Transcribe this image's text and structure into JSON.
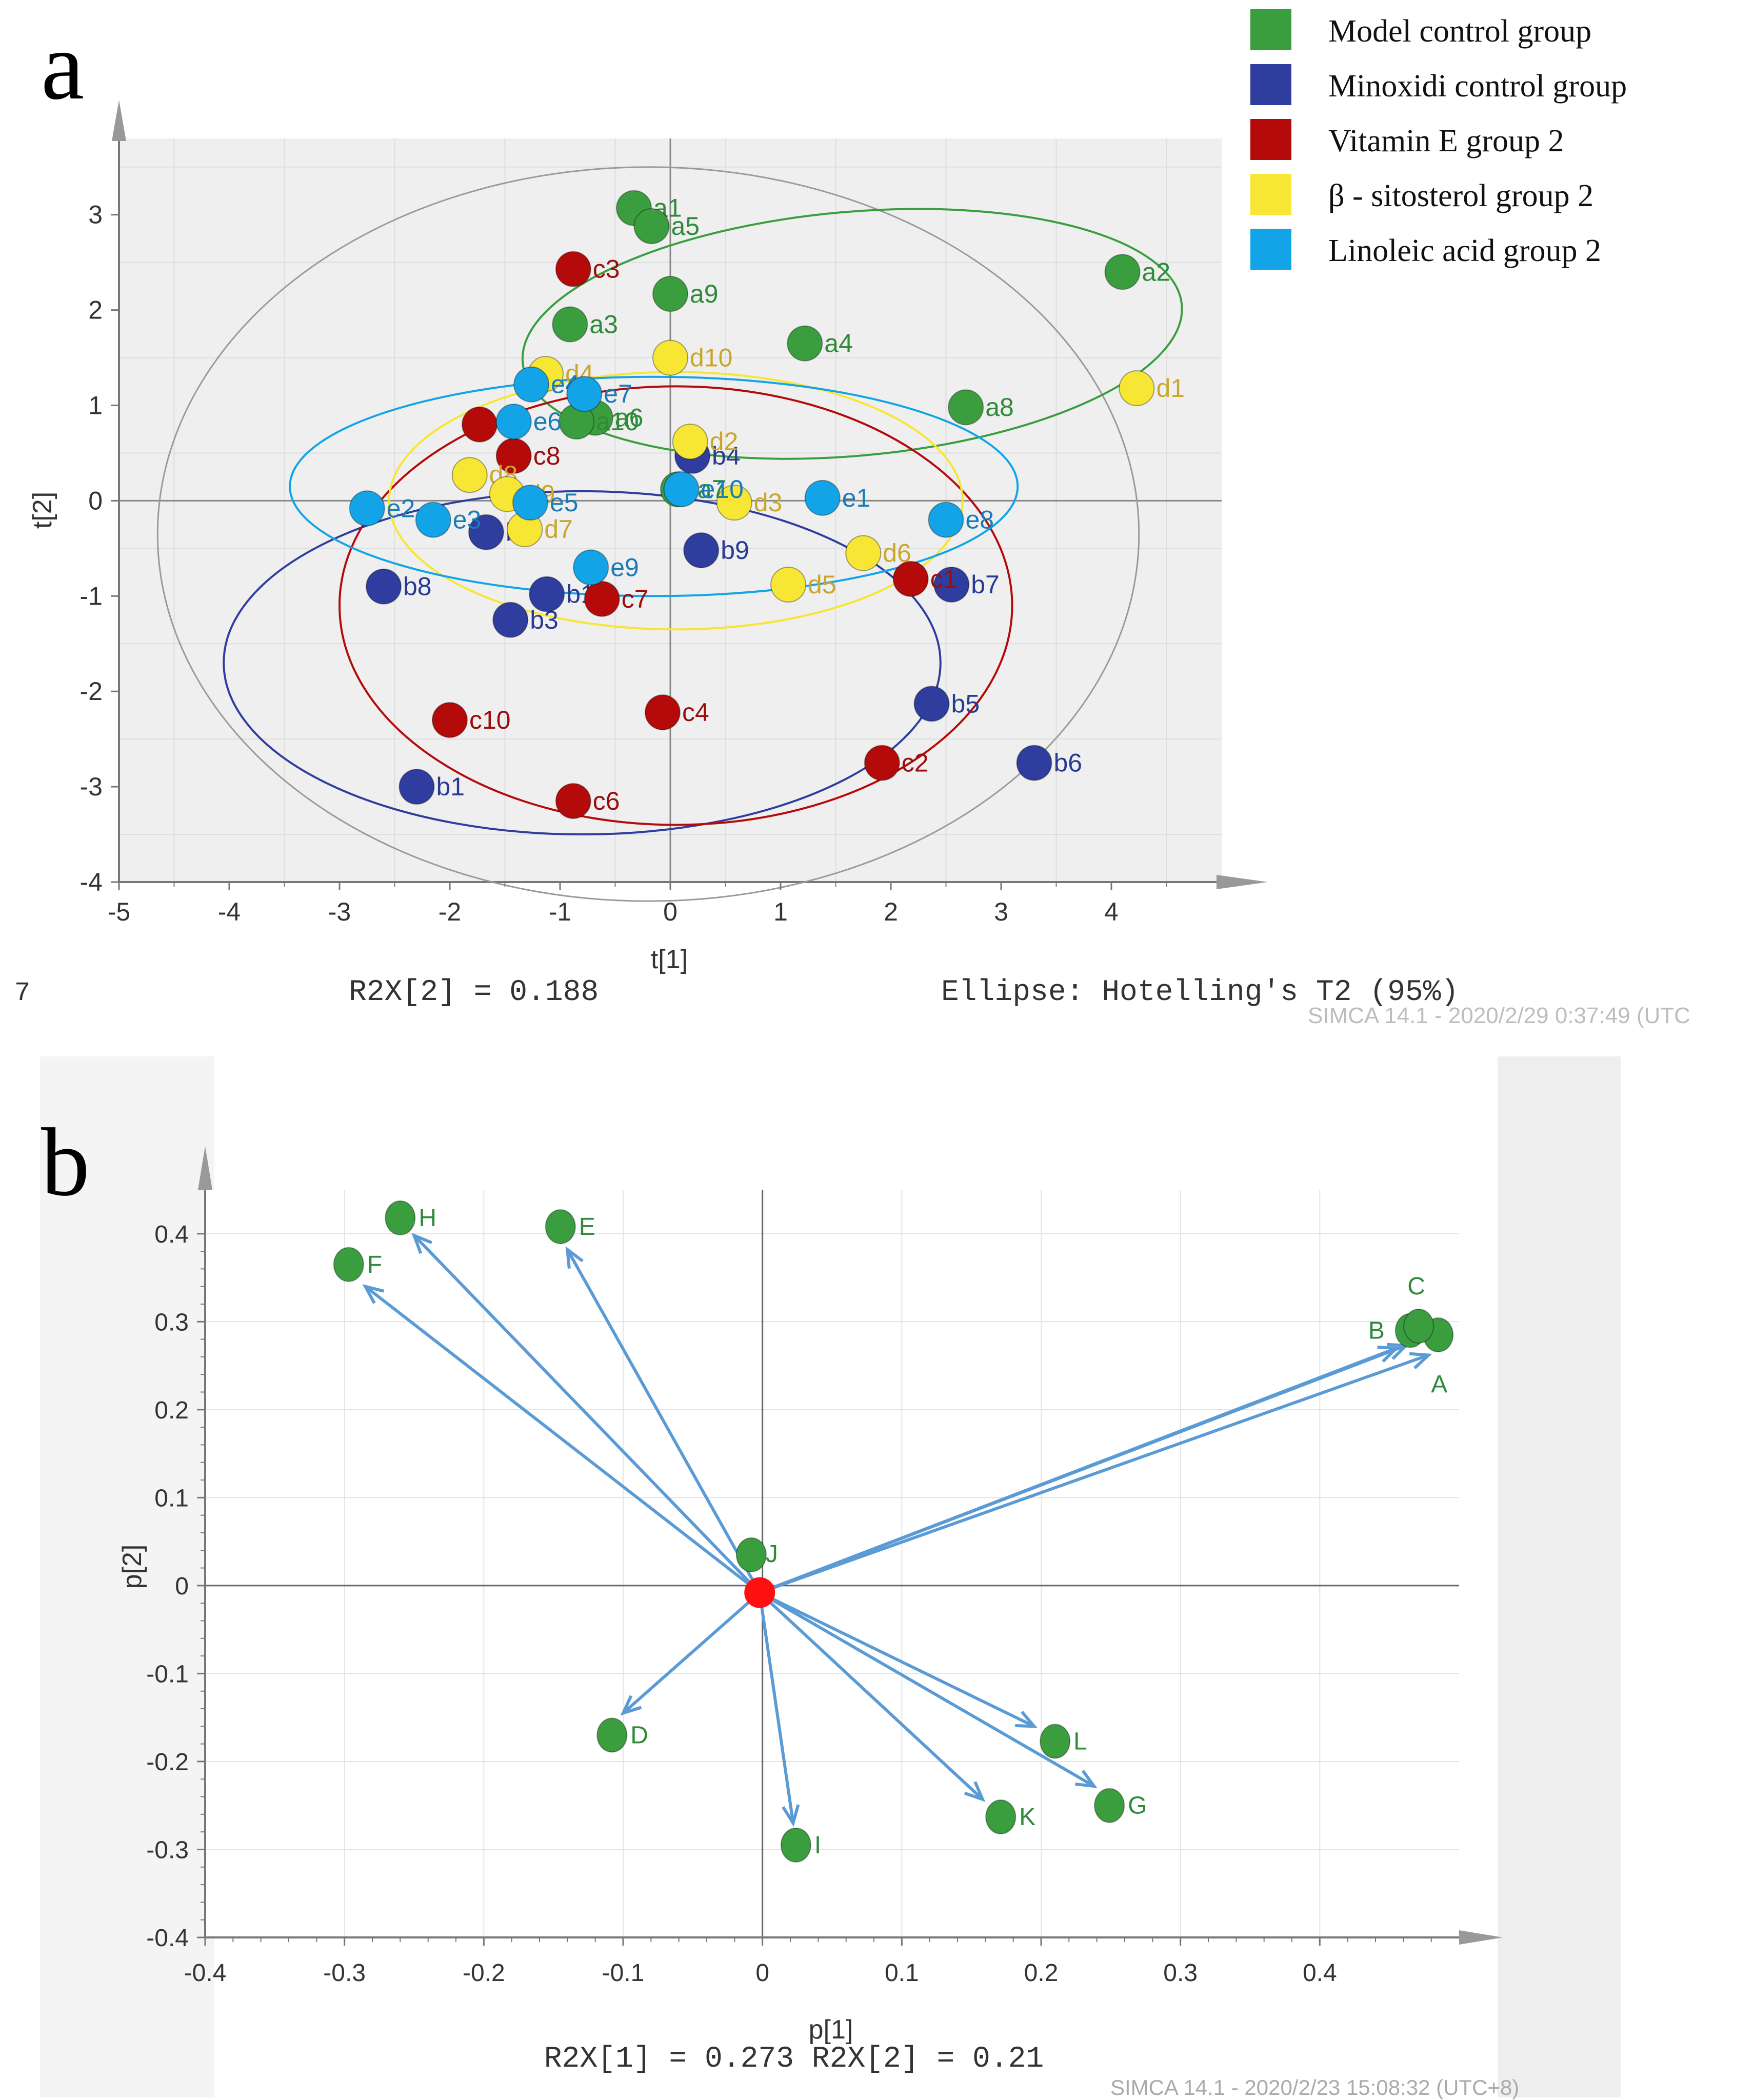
{
  "colors": {
    "green": "#3a9e3e",
    "blue": "#2e3d9e",
    "red": "#b50a0a",
    "yellow": "#f7e634",
    "cyan": "#12a4e6",
    "arrow": "#5b9bd5",
    "origin": "#ff1010",
    "green_label": "#2f8a3a",
    "blue_label": "#283a94",
    "red_label": "#9b0d0d",
    "yellow_label": "#c9a72a",
    "cyan_label": "#1a7bb8"
  },
  "chart_data": [
    {
      "type": "scatter",
      "panel_label": "a",
      "title": "",
      "xlabel": "t[1]",
      "ylabel": "t[2]",
      "xlim": [
        -5,
        5
      ],
      "ylim": [
        -4,
        4
      ],
      "xticks": [
        "-5",
        "-4",
        "-3",
        "-2",
        "-1",
        "0",
        "1",
        "2",
        "3",
        "4"
      ],
      "yticks": [
        "-4",
        "-3",
        "-2",
        "-1",
        "0",
        "1",
        "2",
        "3"
      ],
      "grid": true,
      "legend": [
        {
          "label": "Model control group",
          "color_key": "green"
        },
        {
          "label": "Minoxidi control group",
          "color_key": "blue"
        },
        {
          "label": "Vitamin E group 2",
          "color_key": "red"
        },
        {
          "label": "β - sitosterol group 2",
          "color_key": "yellow"
        },
        {
          "label": "Linoleic acid group 2",
          "color_key": "cyan"
        }
      ],
      "series": [
        {
          "name": "Model control group",
          "color_key": "green",
          "points": [
            {
              "id": "a1",
              "x": -0.33,
              "y": 3.07
            },
            {
              "id": "a2",
              "x": 4.1,
              "y": 2.4
            },
            {
              "id": "a3",
              "x": -0.91,
              "y": 1.85
            },
            {
              "id": "a4",
              "x": 1.22,
              "y": 1.65
            },
            {
              "id": "a5",
              "x": -0.17,
              "y": 2.88
            },
            {
              "id": "a6",
              "x": -0.68,
              "y": 0.87
            },
            {
              "id": "a7",
              "x": 0.07,
              "y": 0.12
            },
            {
              "id": "a8",
              "x": 2.68,
              "y": 0.98
            },
            {
              "id": "a9",
              "x": 0.0,
              "y": 2.17
            },
            {
              "id": "a10",
              "x": -0.85,
              "y": 0.83
            }
          ]
        },
        {
          "name": "Minoxidi control group",
          "color_key": "blue",
          "points": [
            {
              "id": "b1",
              "x": -2.3,
              "y": -3.0
            },
            {
              "id": "b2",
              "x": -1.67,
              "y": -0.33
            },
            {
              "id": "b3",
              "x": -1.45,
              "y": -1.25
            },
            {
              "id": "b4",
              "x": 0.2,
              "y": 0.47
            },
            {
              "id": "b5",
              "x": 2.37,
              "y": -2.13
            },
            {
              "id": "b6",
              "x": 3.3,
              "y": -2.75
            },
            {
              "id": "b7",
              "x": 2.55,
              "y": -0.88
            },
            {
              "id": "b8",
              "x": -2.6,
              "y": -0.9
            },
            {
              "id": "b9",
              "x": 0.28,
              "y": -0.52
            },
            {
              "id": "b10",
              "x": -1.12,
              "y": -0.98
            }
          ]
        },
        {
          "name": "Vitamin E group 2",
          "color_key": "red",
          "points": [
            {
              "id": "c1",
              "x": 2.18,
              "y": -0.82
            },
            {
              "id": "c2",
              "x": 1.92,
              "y": -2.75
            },
            {
              "id": "c3",
              "x": -0.88,
              "y": 2.43
            },
            {
              "id": "c4",
              "x": -0.07,
              "y": -2.22
            },
            {
              "id": "c6",
              "x": -0.88,
              "y": -3.15
            },
            {
              "id": "c7",
              "x": -0.62,
              "y": -1.03
            },
            {
              "id": "c8",
              "x": -1.42,
              "y": 0.47
            },
            {
              "id": "c9",
              "x": -1.73,
              "y": 0.8
            },
            {
              "id": "c10",
              "x": -2.0,
              "y": -2.3
            }
          ]
        },
        {
          "name": "β - sitosterol group 2",
          "color_key": "yellow",
          "points": [
            {
              "id": "d1",
              "x": 4.23,
              "y": 1.18
            },
            {
              "id": "d2",
              "x": 0.18,
              "y": 0.62
            },
            {
              "id": "d3",
              "x": 0.58,
              "y": -0.02
            },
            {
              "id": "d4",
              "x": -1.13,
              "y": 1.33
            },
            {
              "id": "d5",
              "x": 1.07,
              "y": -0.88
            },
            {
              "id": "d6",
              "x": 1.75,
              "y": -0.55
            },
            {
              "id": "d7",
              "x": -1.32,
              "y": -0.3
            },
            {
              "id": "d8",
              "x": -1.82,
              "y": 0.27
            },
            {
              "id": "d9",
              "x": -1.48,
              "y": 0.07
            },
            {
              "id": "d10",
              "x": 0.0,
              "y": 1.5
            }
          ]
        },
        {
          "name": "Linoleic acid group 2",
          "color_key": "cyan",
          "points": [
            {
              "id": "e1",
              "x": 1.38,
              "y": 0.03
            },
            {
              "id": "e2",
              "x": -2.75,
              "y": -0.08
            },
            {
              "id": "e3",
              "x": -2.15,
              "y": -0.2
            },
            {
              "id": "e4",
              "x": -1.26,
              "y": 1.22
            },
            {
              "id": "e5",
              "x": -1.27,
              "y": -0.02
            },
            {
              "id": "e7",
              "x": -0.78,
              "y": 1.12
            },
            {
              "id": "e8",
              "x": 2.5,
              "y": -0.2
            },
            {
              "id": "e9",
              "x": -0.72,
              "y": -0.7
            },
            {
              "id": "e10",
              "x": 0.1,
              "y": 0.12
            },
            {
              "id": "e6",
              "x": -1.42,
              "y": 0.83
            }
          ]
        }
      ],
      "ellipses": [
        {
          "name": "Hotelling's T2 (95%)",
          "color_key": "grey",
          "center": [
            -0.2,
            -0.35
          ],
          "rx": 4.45,
          "ry": 3.85,
          "rotation_deg": 0
        },
        {
          "name": "Model control group",
          "color_key": "green",
          "center": [
            1.65,
            1.75
          ],
          "rx": 3.0,
          "ry": 1.28,
          "rotation_deg": -5
        },
        {
          "name": "Minoxidi control group",
          "color_key": "blue",
          "center": [
            -0.8,
            -1.7
          ],
          "rx": 3.25,
          "ry": 1.8,
          "rotation_deg": 0
        },
        {
          "name": "Vitamin E group 2",
          "color_key": "red",
          "center": [
            0.05,
            -1.1
          ],
          "rx": 3.05,
          "ry": 2.3,
          "rotation_deg": 0
        },
        {
          "name": "β - sitosterol group 2",
          "color_key": "yellow",
          "center": [
            0.05,
            0.0
          ],
          "rx": 2.6,
          "ry": 1.35,
          "rotation_deg": 0
        },
        {
          "name": "Linoleic acid group 2",
          "color_key": "cyan",
          "center": [
            -0.15,
            0.15
          ],
          "rx": 3.3,
          "ry": 1.15,
          "rotation_deg": 0
        }
      ],
      "annotations": {
        "left_number": "7",
        "r2x": "R2X[2] = 0.188",
        "ellipse_note": "Ellipse: Hotelling's T2 (95%)",
        "software": "SIMCA 14.1 - 2020/2/29 0:37:49 (UTC"
      }
    },
    {
      "type": "scatter",
      "panel_label": "b",
      "title": "",
      "xlabel": "p[1]",
      "ylabel": "p[2]",
      "xlim": [
        -0.4,
        0.5
      ],
      "ylim": [
        -0.4,
        0.45
      ],
      "xticks": [
        "-0.4",
        "-0.3",
        "-0.2",
        "-0.1",
        "0",
        "0.1",
        "0.2",
        "0.3",
        "0.4"
      ],
      "yticks": [
        "-0.4",
        "-0.3",
        "-0.2",
        "-0.1",
        "0",
        "0.1",
        "0.2",
        "0.3",
        "0.4"
      ],
      "grid": true,
      "origin": {
        "x": -0.002,
        "y": -0.008
      },
      "points": [
        {
          "id": "A",
          "x": 0.485,
          "y": 0.285
        },
        {
          "id": "B",
          "x": 0.465,
          "y": 0.29
        },
        {
          "id": "C",
          "x": 0.471,
          "y": 0.295
        },
        {
          "id": "D",
          "x": -0.108,
          "y": -0.17
        },
        {
          "id": "E",
          "x": -0.145,
          "y": 0.408
        },
        {
          "id": "F",
          "x": -0.297,
          "y": 0.365
        },
        {
          "id": "G",
          "x": 0.249,
          "y": -0.25
        },
        {
          "id": "H",
          "x": -0.26,
          "y": 0.418
        },
        {
          "id": "I",
          "x": 0.024,
          "y": -0.295
        },
        {
          "id": "J",
          "x": -0.008,
          "y": 0.035
        },
        {
          "id": "K",
          "x": 0.171,
          "y": -0.263
        },
        {
          "id": "L",
          "x": 0.21,
          "y": -0.177
        }
      ],
      "arrows": [
        {
          "to": "A",
          "x": 0.478,
          "y": 0.262
        },
        {
          "to": "B",
          "x": 0.455,
          "y": 0.27
        },
        {
          "to": "C",
          "x": 0.462,
          "y": 0.273
        },
        {
          "to": "D",
          "x": -0.1,
          "y": -0.145
        },
        {
          "to": "E",
          "x": -0.14,
          "y": 0.382
        },
        {
          "to": "F",
          "x": -0.285,
          "y": 0.34
        },
        {
          "to": "G",
          "x": 0.238,
          "y": -0.228
        },
        {
          "to": "H",
          "x": -0.25,
          "y": 0.398
        },
        {
          "to": "I",
          "x": 0.022,
          "y": -0.27
        },
        {
          "to": "K",
          "x": 0.158,
          "y": -0.243
        },
        {
          "to": "L",
          "x": 0.195,
          "y": -0.16
        }
      ],
      "annotations": {
        "r2x": "R2X[1] = 0.273 R2X[2] = 0.21",
        "software": "SIMCA 14.1 - 2020/2/23 15:08:32 (UTC+8)"
      }
    }
  ]
}
